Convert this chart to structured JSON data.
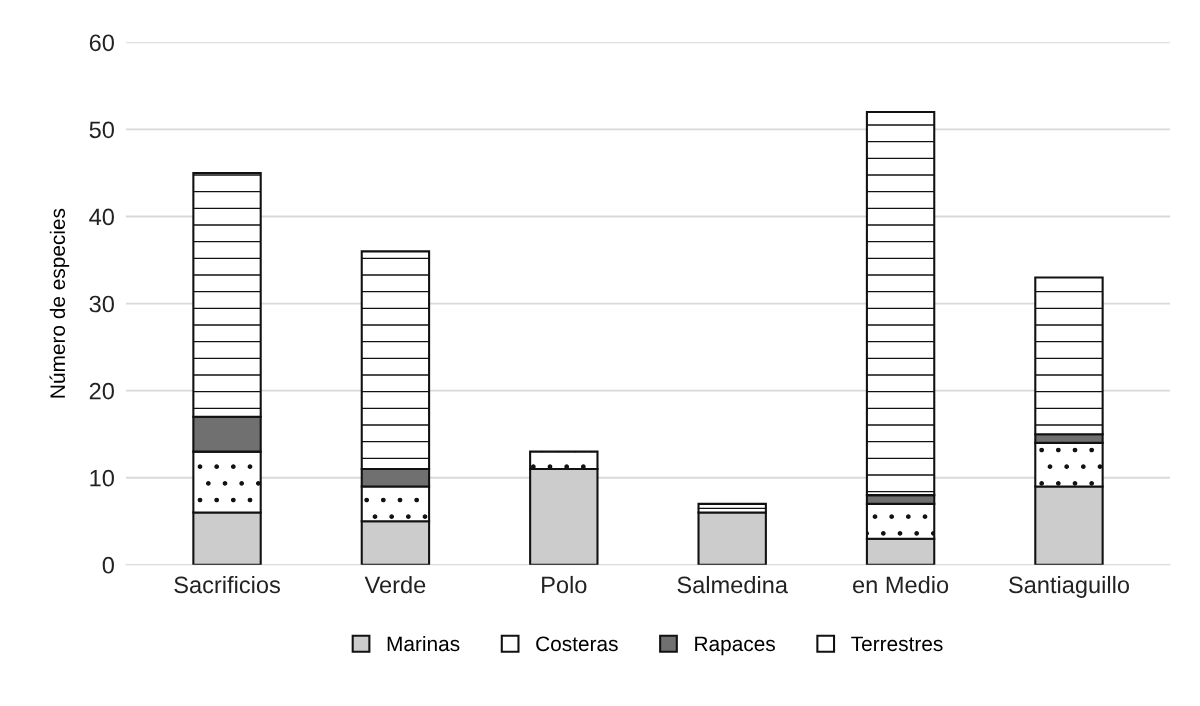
{
  "chart_data": {
    "type": "bar",
    "stacked": true,
    "ylabel": "Número de especies",
    "categories": [
      "Sacrificios",
      "Verde",
      "Polo",
      "Salmedina",
      "en Medio",
      "Santiaguillo"
    ],
    "series": [
      {
        "name": "Marinas",
        "color": "#cccccc",
        "values": [
          6,
          5,
          11,
          6,
          3,
          9
        ]
      },
      {
        "name": "Costeras",
        "color": "#ffffff",
        "values": [
          7,
          4,
          2,
          0,
          4,
          5
        ]
      },
      {
        "name": "Rapaces",
        "color": "#707070",
        "values": [
          4,
          2,
          0,
          0,
          1,
          1
        ]
      },
      {
        "name": "Terrestres",
        "color": "#ffffff",
        "values": [
          28,
          25,
          0,
          1,
          44,
          18
        ]
      }
    ],
    "ylim": [
      0,
      60
    ],
    "yticks": [
      0,
      10,
      20,
      30,
      40,
      50,
      60
    ],
    "grid": "y",
    "legend": "bottom"
  }
}
